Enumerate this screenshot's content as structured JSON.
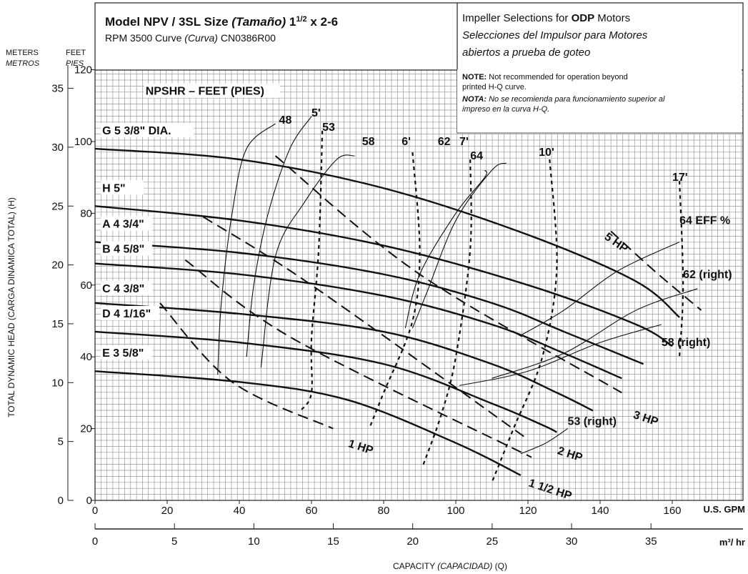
{
  "header": {
    "model_prefix": "Model NPV / 3SL Size ",
    "model_size_es": "(Tamaño)",
    "model_size_val": " 1",
    "model_size_frac": "1/2",
    "model_size_rest": " x 2-6",
    "rpm_line_a": "RPM 3500 Curve ",
    "rpm_line_es": "(Curva)",
    "rpm_line_b": " CN0386R00",
    "impeller_a": "Impeller Selections for ",
    "impeller_b": "ODP",
    "impeller_c": " Motors",
    "impeller_es1": "Selecciones del Impulsor para Motores",
    "impeller_es2": "abiertos a prueba de goteo",
    "note_label": "NOTE:",
    "note_text1": " Not recommended for operation beyond",
    "note_text2": "printed H-Q curve.",
    "nota_label": "NOTA:",
    "nota_text1": " No se recomienda para funcionamiento superior al",
    "nota_text2": "impreso en la curva H-Q."
  },
  "axes": {
    "meters_label": "METERS",
    "meters_label_es": "METROS",
    "feet_label": "FEET",
    "feet_label_es": "PIES",
    "y_title": "TOTAL DYNAMIC HEAD (CARGA DINAMICA TOTAL) (H)",
    "gpm_unit": "U.S. GPM",
    "m3_unit": "m³/ hr",
    "x_title_a": "CAPACITY ",
    "x_title_es": "(CAPACIDAD)",
    "x_title_b": " (Q)"
  },
  "chart_data": {
    "type": "line",
    "title": "Model NPV / 3SL Size (Tamaño) 1 1/2 x 2-6",
    "xlabel": "CAPACITY (CAPACIDAD) (Q)",
    "ylabel": "TOTAL DYNAMIC HEAD (CARGA DINAMICA TOTAL) (H)",
    "x_unit": "U.S. GPM",
    "y_unit": "FEET",
    "xlim": [
      0,
      165
    ],
    "ylim": [
      0,
      130
    ],
    "x_ticks": [
      0,
      20,
      40,
      60,
      80,
      100,
      120,
      140,
      160
    ],
    "y_ticks_feet": [
      0,
      20,
      40,
      60,
      80,
      100,
      120
    ],
    "y_ticks_meters": [
      0,
      5,
      10,
      15,
      20,
      25,
      30,
      35
    ],
    "x_ticks_m3hr": [
      0,
      5,
      10,
      15,
      20,
      25,
      30,
      35
    ],
    "npsh_label": "NPSHR – FEET (PIES)",
    "impeller_curves": [
      {
        "name": "G 5 3/8\" DIA.",
        "points": [
          [
            0,
            98
          ],
          [
            40,
            95
          ],
          [
            80,
            87
          ],
          [
            120,
            74
          ],
          [
            150,
            61
          ],
          [
            162,
            51
          ]
        ]
      },
      {
        "name": "H 5\"",
        "points": [
          [
            0,
            82
          ],
          [
            40,
            78
          ],
          [
            80,
            71
          ],
          [
            120,
            60
          ],
          [
            150,
            49
          ],
          [
            160,
            43
          ]
        ]
      },
      {
        "name": "A 4 3/4\"",
        "points": [
          [
            0,
            72
          ],
          [
            40,
            69
          ],
          [
            80,
            63
          ],
          [
            110,
            55
          ],
          [
            130,
            47
          ],
          [
            152,
            38
          ]
        ]
      },
      {
        "name": "B 4 5/8\"",
        "points": [
          [
            0,
            66
          ],
          [
            40,
            63
          ],
          [
            80,
            57
          ],
          [
            110,
            49
          ],
          [
            130,
            41
          ],
          [
            146,
            34
          ]
        ]
      },
      {
        "name": "C 4 3/8\"",
        "points": [
          [
            0,
            55
          ],
          [
            40,
            52
          ],
          [
            80,
            47
          ],
          [
            110,
            38
          ],
          [
            128,
            30
          ],
          [
            138,
            25
          ]
        ]
      },
      {
        "name": "D 4 1/16\"",
        "points": [
          [
            0,
            47
          ],
          [
            40,
            44
          ],
          [
            80,
            38
          ],
          [
            110,
            27
          ],
          [
            124,
            21
          ],
          [
            128,
            19
          ]
        ]
      },
      {
        "name": "E 3 5/8\"",
        "points": [
          [
            0,
            36
          ],
          [
            40,
            33
          ],
          [
            70,
            28
          ],
          [
            100,
            16
          ],
          [
            118,
            7
          ]
        ]
      }
    ],
    "efficiency_curves": [
      {
        "name": "48",
        "points": [
          [
            34,
            35
          ],
          [
            35,
            55
          ],
          [
            38,
            80
          ],
          [
            42,
            98
          ],
          [
            50,
            105
          ]
        ]
      },
      {
        "name": "53",
        "points": [
          [
            42,
            40
          ],
          [
            44,
            60
          ],
          [
            48,
            80
          ],
          [
            54,
            98
          ],
          [
            60,
            107
          ]
        ]
      },
      {
        "name": "58",
        "points": [
          [
            46,
            37
          ],
          [
            50,
            68
          ],
          [
            58,
            83
          ],
          [
            67,
            95
          ],
          [
            72,
            96
          ]
        ]
      },
      {
        "name": "62",
        "points": [
          [
            88,
            48
          ],
          [
            92,
            58
          ],
          [
            100,
            78
          ],
          [
            110,
            92
          ],
          [
            114,
            94
          ]
        ]
      },
      {
        "name": "64",
        "points": [
          [
            86,
            48
          ],
          [
            90,
            63
          ],
          [
            100,
            80
          ],
          [
            108,
            90
          ],
          [
            108,
            92
          ]
        ]
      },
      {
        "name": "64 EFF %",
        "points": [
          [
            118,
            46
          ],
          [
            130,
            53
          ],
          [
            145,
            64
          ],
          [
            162,
            72
          ]
        ]
      },
      {
        "name": "62 (right)",
        "points": [
          [
            110,
            34
          ],
          [
            130,
            41
          ],
          [
            150,
            53
          ],
          [
            167,
            59
          ]
        ]
      },
      {
        "name": "58 (right)",
        "points": [
          [
            101,
            32
          ],
          [
            120,
            36
          ],
          [
            140,
            44
          ],
          [
            157,
            49
          ]
        ]
      },
      {
        "name": "53 (right)",
        "points": [
          [
            118,
            13
          ],
          [
            125,
            16
          ],
          [
            131,
            20
          ]
        ]
      }
    ],
    "npsh_lines": [
      {
        "name": "5'",
        "points": [
          [
            63,
            103
          ],
          [
            62,
            70
          ],
          [
            60,
            45
          ],
          [
            60,
            30
          ],
          [
            57,
            25
          ]
        ]
      },
      {
        "name": "6'",
        "points": [
          [
            88,
            97
          ],
          [
            90,
            70
          ],
          [
            88,
            50
          ],
          [
            80,
            30
          ],
          [
            76,
            20
          ]
        ]
      },
      {
        "name": "7'",
        "points": [
          [
            104,
            95
          ],
          [
            104,
            70
          ],
          [
            100,
            40
          ],
          [
            96,
            24
          ],
          [
            91,
            10
          ]
        ]
      },
      {
        "name": "10'",
        "points": [
          [
            126,
            95
          ],
          [
            128,
            65
          ],
          [
            124,
            40
          ],
          [
            116,
            20
          ],
          [
            110,
            5
          ]
        ]
      },
      {
        "name": "17'",
        "points": [
          [
            162,
            89
          ],
          [
            163,
            60
          ],
          [
            162,
            40
          ]
        ]
      }
    ],
    "hp_lines": [
      {
        "name": "1 HP",
        "points": [
          [
            18,
            55
          ],
          [
            38,
            33
          ],
          [
            66,
            20
          ]
        ]
      },
      {
        "name": "1 1/2 HP",
        "points": [
          [
            25,
            67
          ],
          [
            55,
            45
          ],
          [
            121,
            12
          ]
        ]
      },
      {
        "name": "2 HP",
        "points": [
          [
            30,
            79
          ],
          [
            60,
            60
          ],
          [
            120,
            17
          ]
        ]
      },
      {
        "name": "3 HP",
        "points": [
          [
            50,
            96
          ],
          [
            90,
            63
          ],
          [
            146,
            30
          ]
        ]
      },
      {
        "name": "5 HP",
        "points": [
          [
            143,
            75
          ],
          [
            155,
            64
          ],
          [
            168,
            53
          ]
        ]
      }
    ]
  }
}
